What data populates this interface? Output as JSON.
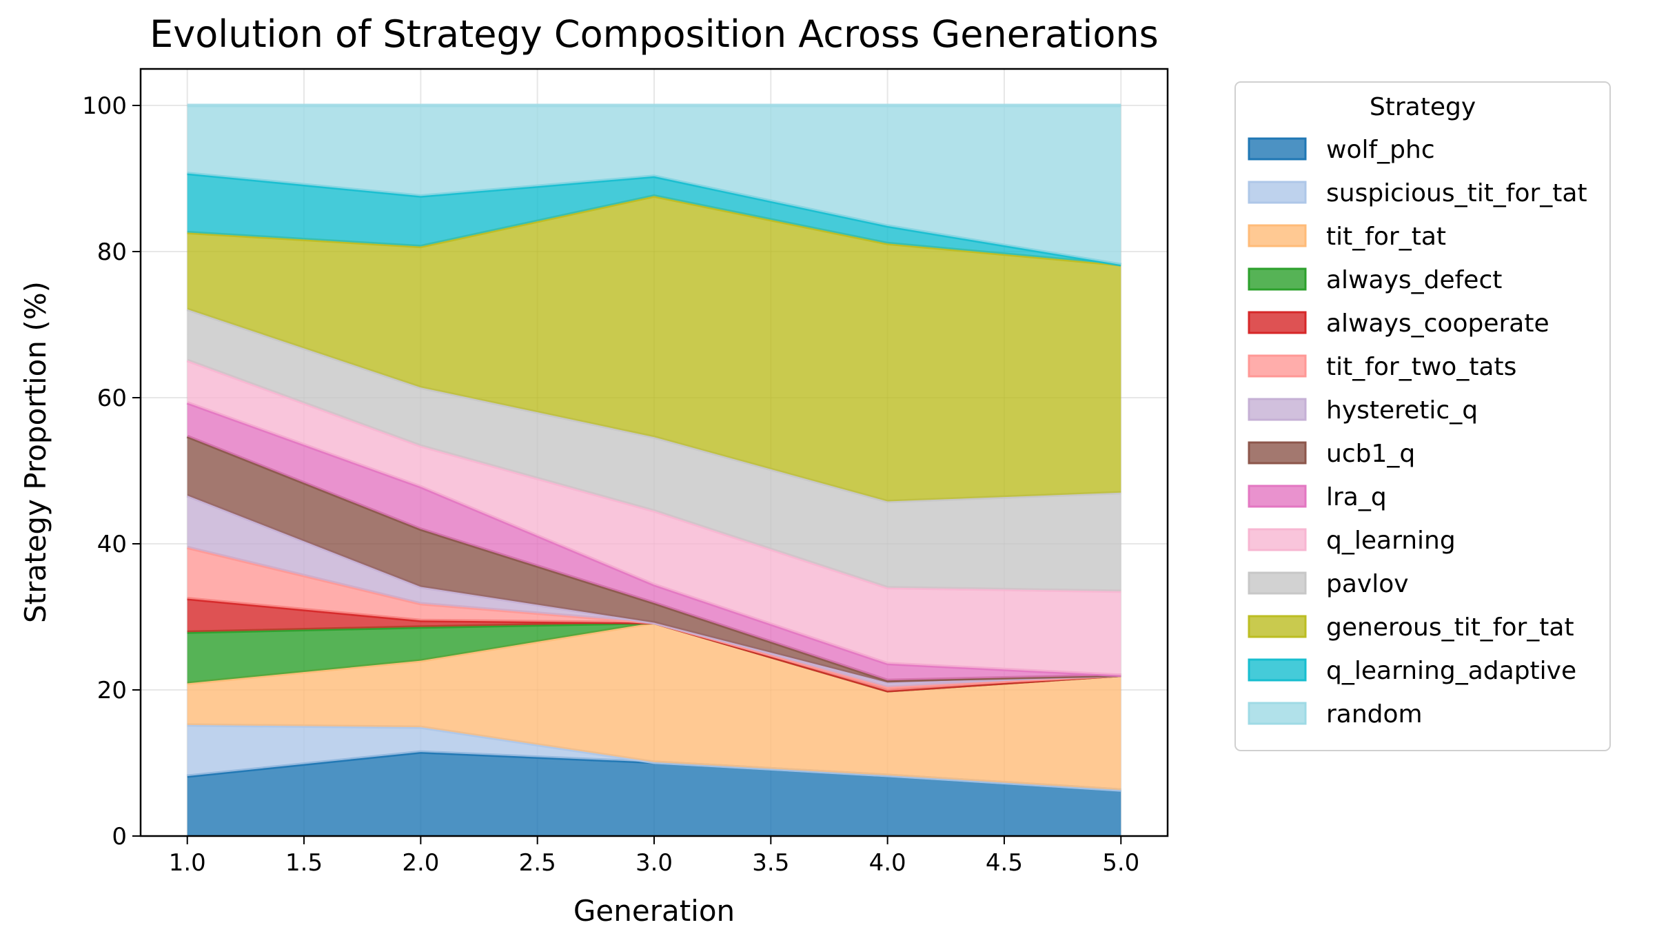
{
  "chart_data": {
    "type": "area",
    "title": "Evolution of Strategy Composition Across Generations",
    "xlabel": "Generation",
    "ylabel": "Strategy Proportion (%)",
    "x": [
      1.0,
      2.0,
      3.0,
      4.0,
      5.0
    ],
    "xlim": [
      0.8,
      5.2
    ],
    "ylim": [
      0,
      105
    ],
    "xticks": [
      "1.0",
      "1.5",
      "2.0",
      "2.5",
      "3.0",
      "3.5",
      "4.0",
      "4.5",
      "5.0"
    ],
    "yticks": [
      "0",
      "20",
      "40",
      "60",
      "80",
      "100"
    ],
    "grid": true,
    "stacked": true,
    "legend_title": "Strategy",
    "legend_position": "outside right",
    "series": [
      {
        "name": "wolf_phc",
        "color": "#1f77b4",
        "values": [
          8.2,
          11.5,
          10.1,
          8.3,
          6.3
        ]
      },
      {
        "name": "suspicious_tit_for_tat",
        "color": "#aec7e8",
        "values": [
          7.0,
          3.4,
          0.0,
          0.0,
          0.0
        ]
      },
      {
        "name": "tit_for_tat",
        "color": "#ffbb78",
        "values": [
          5.7,
          9.1,
          19.1,
          11.6,
          15.7
        ]
      },
      {
        "name": "always_defect",
        "color": "#2ca02c",
        "values": [
          7.0,
          4.6,
          0.0,
          0.0,
          0.0
        ]
      },
      {
        "name": "always_cooperate",
        "color": "#d62728",
        "values": [
          4.6,
          0.9,
          0.0,
          0.0,
          0.0
        ]
      },
      {
        "name": "tit_for_two_tats",
        "color": "#ff9896",
        "values": [
          7.0,
          2.3,
          0.0,
          0.5,
          0.0
        ]
      },
      {
        "name": "hysteretic_q",
        "color": "#c5b0d5",
        "values": [
          7.1,
          2.3,
          0.0,
          0.6,
          0.0
        ]
      },
      {
        "name": "ucb1_q",
        "color": "#8c564b",
        "values": [
          8.1,
          7.9,
          2.7,
          0.3,
          0.0
        ]
      },
      {
        "name": "lra_q",
        "color": "#e377c2",
        "values": [
          4.6,
          5.8,
          2.5,
          2.3,
          0.0
        ]
      },
      {
        "name": "q_learning",
        "color": "#f7b6d2",
        "values": [
          5.8,
          5.6,
          10.1,
          10.4,
          11.5
        ]
      },
      {
        "name": "pavlov",
        "color": "#c7c7c7",
        "values": [
          7.0,
          8.0,
          10.1,
          11.8,
          13.5
        ]
      },
      {
        "name": "generous_tit_for_tat",
        "color": "#bcbd22",
        "values": [
          10.5,
          19.3,
          33.0,
          35.3,
          31.2
        ]
      },
      {
        "name": "q_learning_adaptive",
        "color": "#17becf",
        "values": [
          8.1,
          6.9,
          2.7,
          2.4,
          0.0
        ]
      },
      {
        "name": "random",
        "color": "#9edae5",
        "values": [
          9.3,
          12.4,
          9.7,
          16.5,
          21.8
        ]
      }
    ]
  }
}
